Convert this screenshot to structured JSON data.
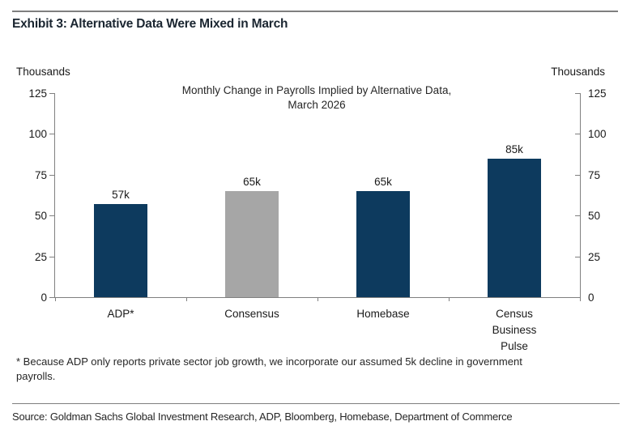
{
  "exhibit": {
    "title": "Exhibit 3: Alternative Data Were Mixed in March"
  },
  "chart_data": {
    "type": "bar",
    "title": "Monthly Change in Payrolls Implied by Alternative Data, March 2026",
    "title_line1": "Monthly Change in Payrolls Implied by Alternative Data,",
    "title_line2": "March 2026",
    "unit_label_left": "Thousands",
    "unit_label_right": "Thousands",
    "categories": [
      "ADP*",
      "Consensus",
      "Homebase",
      "Census Business Pulse"
    ],
    "values": [
      57,
      65,
      65,
      85
    ],
    "value_labels": [
      "57k",
      "65k",
      "65k",
      "85k"
    ],
    "bar_colors": [
      "#0d3a5e",
      "#a6a6a6",
      "#0d3a5e",
      "#0d3a5e"
    ],
    "ylim": [
      0,
      125
    ],
    "yticks": [
      0,
      25,
      50,
      75,
      100,
      125
    ],
    "ylabel": "Thousands",
    "xlabel": "",
    "grid": false,
    "legend": "none",
    "axes": "left-and-right-value-axes"
  },
  "footnote": {
    "line1": "* Because ADP only reports private sector job growth, we incorporate our assumed 5k decline in government",
    "line2": "payrolls.",
    "full": "* Because ADP only reports private sector job growth, we incorporate our assumed 5k decline in government payrolls."
  },
  "source": "Source: Goldman Sachs Global Investment Research, ADP, Bloomberg, Homebase, Department of Commerce",
  "colors": {
    "navy": "#0d3a5e",
    "gray": "#a6a6a6",
    "axis": "#808080",
    "text": "#1a1a1a"
  }
}
